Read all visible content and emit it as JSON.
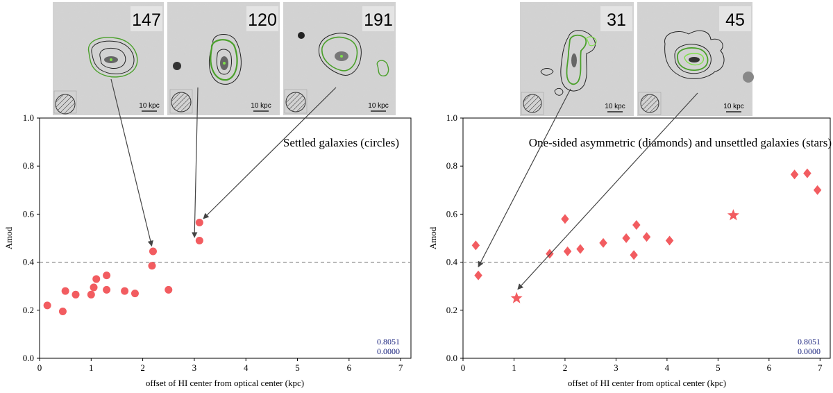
{
  "chart_data": [
    {
      "type": "scatter",
      "title": "Settled galaxies (circles)",
      "xlabel": "offset of HI center from optical center (kpc)",
      "ylabel": "Amod",
      "xlim": [
        0,
        7.2
      ],
      "ylim": [
        0,
        1.0
      ],
      "xticks": [
        0,
        1,
        2,
        3,
        4,
        5,
        6,
        7
      ],
      "yticks": [
        0.0,
        0.2,
        0.4,
        0.6,
        0.8,
        1.0
      ],
      "reference_line_y": 0.4,
      "stats": [
        "0.8051",
        "0.0000"
      ],
      "color": "#f25c60",
      "series": [
        {
          "name": "Settled galaxies",
          "marker": "circle",
          "points": [
            {
              "x": 0.15,
              "y": 0.22
            },
            {
              "x": 0.45,
              "y": 0.195
            },
            {
              "x": 0.5,
              "y": 0.28
            },
            {
              "x": 0.7,
              "y": 0.265
            },
            {
              "x": 1.0,
              "y": 0.265
            },
            {
              "x": 1.05,
              "y": 0.295
            },
            {
              "x": 1.1,
              "y": 0.33
            },
            {
              "x": 1.3,
              "y": 0.345
            },
            {
              "x": 1.3,
              "y": 0.285
            },
            {
              "x": 1.65,
              "y": 0.28
            },
            {
              "x": 1.85,
              "y": 0.27
            },
            {
              "x": 2.18,
              "y": 0.385
            },
            {
              "x": 2.2,
              "y": 0.445
            },
            {
              "x": 2.5,
              "y": 0.285
            },
            {
              "x": 3.1,
              "y": 0.565
            },
            {
              "x": 3.1,
              "y": 0.49
            }
          ]
        }
      ],
      "thumbnails": [
        {
          "id": "147",
          "scale_label": "10 kpc",
          "points_to": {
            "x": 2.2,
            "y": 0.445
          }
        },
        {
          "id": "120",
          "scale_label": "10 kpc",
          "points_to": {
            "x": 3.0,
            "y": 0.48
          }
        },
        {
          "id": "191",
          "scale_label": "10 kpc",
          "points_to": {
            "x": 3.1,
            "y": 0.565
          }
        }
      ]
    },
    {
      "type": "scatter",
      "title": "One-sided asymmetric (diamonds) and unsettled galaxies (stars)",
      "xlabel": "offset of HI center from optical center (kpc)",
      "ylabel": "Amod",
      "xlim": [
        0,
        7.2
      ],
      "ylim": [
        0,
        1.0
      ],
      "xticks": [
        0,
        1,
        2,
        3,
        4,
        5,
        6,
        7
      ],
      "yticks": [
        0.0,
        0.2,
        0.4,
        0.6,
        0.8,
        1.0
      ],
      "reference_line_y": 0.4,
      "stats": [
        "0.8051",
        "0.0000"
      ],
      "color": "#f25c60",
      "series": [
        {
          "name": "One-sided asymmetric",
          "marker": "diamond",
          "points": [
            {
              "x": 0.25,
              "y": 0.47
            },
            {
              "x": 0.3,
              "y": 0.345
            },
            {
              "x": 1.7,
              "y": 0.435
            },
            {
              "x": 2.0,
              "y": 0.58
            },
            {
              "x": 2.05,
              "y": 0.445
            },
            {
              "x": 2.3,
              "y": 0.455
            },
            {
              "x": 2.75,
              "y": 0.48
            },
            {
              "x": 3.2,
              "y": 0.5
            },
            {
              "x": 3.35,
              "y": 0.43
            },
            {
              "x": 3.4,
              "y": 0.555
            },
            {
              "x": 3.6,
              "y": 0.505
            },
            {
              "x": 4.05,
              "y": 0.49
            },
            {
              "x": 6.5,
              "y": 0.765
            },
            {
              "x": 6.75,
              "y": 0.77
            },
            {
              "x": 6.95,
              "y": 0.7
            }
          ]
        },
        {
          "name": "Unsettled galaxies",
          "marker": "star",
          "points": [
            {
              "x": 1.05,
              "y": 0.25
            },
            {
              "x": 5.3,
              "y": 0.595
            }
          ]
        }
      ],
      "thumbnails": [
        {
          "id": "31",
          "scale_label": "10 kpc",
          "points_to": {
            "x": 0.25,
            "y": 0.36
          }
        },
        {
          "id": "45",
          "scale_label": "10 kpc",
          "points_to": {
            "x": 1.0,
            "y": 0.27
          }
        }
      ]
    }
  ]
}
